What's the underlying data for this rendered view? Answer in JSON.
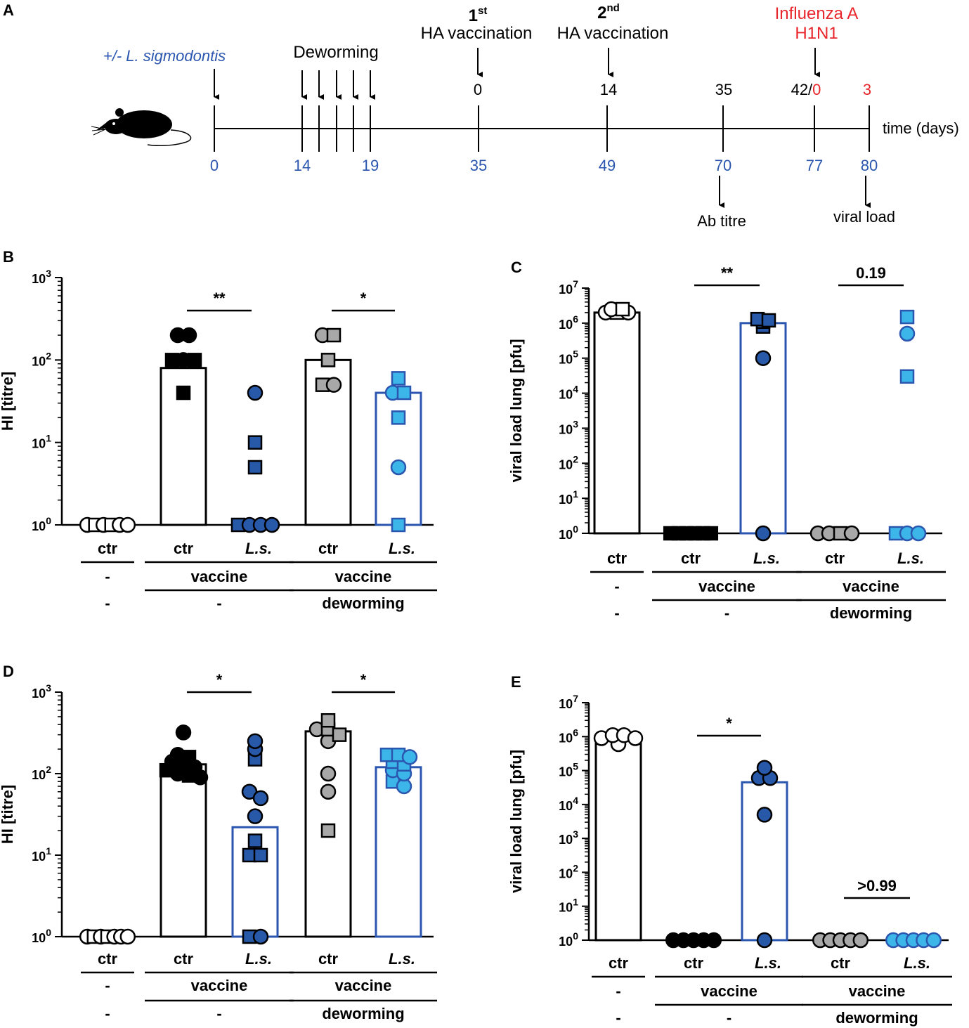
{
  "colors": {
    "blue": "#2b56b0",
    "dark_blue": "#2859a8",
    "light_blue": "#3cb6e8",
    "grey": "#a8a8a8",
    "red": "#e8262c",
    "black": "#000000"
  },
  "timeline": {
    "panel": "A",
    "infection_label": "+/- L. sigmodontis",
    "deworming_label": "Deworming",
    "vacc1_ord": "1",
    "vacc1_sup": "st",
    "vacc1_label": "HA vaccination",
    "vacc2_ord": "2",
    "vacc2_sup": "nd",
    "vacc2_label": "HA vaccination",
    "infection2_line1": "Influenza A",
    "infection2_line2": "H1N1",
    "axis_label": "time (days)",
    "days": [
      0,
      14,
      19,
      35,
      49,
      70,
      77,
      80
    ],
    "top_0": "0",
    "top_14": "14",
    "top_35": "35",
    "top_42": "42/",
    "top_42b": "0",
    "top_3": "3",
    "ab_titre": "Ab titre",
    "viral_load": "viral load",
    "mouse_icon": "mouse-icon"
  },
  "chart_data": [
    {
      "panel": "B",
      "type": "bar",
      "yscale": "log",
      "ylim": [
        1,
        1000
      ],
      "ylabel": "HI [titre]",
      "yticks": [
        {
          "b": "10",
          "e": "3"
        },
        {
          "b": "10",
          "e": "2"
        },
        {
          "b": "10",
          "e": "1"
        },
        {
          "b": "10",
          "e": "0"
        }
      ],
      "groups": [
        {
          "label": "ctr",
          "bar": 1,
          "style": "white",
          "points": [
            [
              1,
              "o"
            ],
            [
              1,
              "s"
            ],
            [
              1,
              "o"
            ],
            [
              1,
              "s"
            ],
            [
              1,
              "o"
            ],
            [
              1,
              "o"
            ]
          ]
        },
        {
          "label": "ctr",
          "bar": 80,
          "style": "black",
          "points": [
            [
              200,
              "o"
            ],
            [
              200,
              "o"
            ],
            [
              100,
              "s"
            ],
            [
              100,
              "o"
            ],
            [
              100,
              "s"
            ],
            [
              40,
              "s"
            ]
          ]
        },
        {
          "label": "L.s.",
          "bar": 1,
          "style": "dark_blue",
          "points": [
            [
              40,
              "o"
            ],
            [
              10,
              "s"
            ],
            [
              5,
              "s"
            ],
            [
              1,
              "s"
            ],
            [
              1,
              "o"
            ],
            [
              1,
              "o"
            ],
            [
              1,
              "o"
            ]
          ]
        },
        {
          "label": "ctr",
          "bar": 100,
          "style": "grey",
          "points": [
            [
              200,
              "o"
            ],
            [
              200,
              "s"
            ],
            [
              100,
              "s"
            ],
            [
              50,
              "s"
            ],
            [
              50,
              "o"
            ]
          ]
        },
        {
          "label": "L.s.",
          "bar": 40,
          "style": "light_blue",
          "points": [
            [
              60,
              "s"
            ],
            [
              40,
              "o"
            ],
            [
              40,
              "s"
            ],
            [
              20,
              "s"
            ],
            [
              5,
              "o"
            ],
            [
              1,
              "s"
            ]
          ]
        }
      ],
      "comparisons": [
        {
          "groups": [
            1,
            2
          ],
          "label": "**"
        },
        {
          "groups": [
            3,
            4
          ],
          "label": "*"
        }
      ],
      "row1": [
        "-",
        "vaccine",
        "vaccine"
      ],
      "row2": [
        "-",
        "-",
        "deworming"
      ]
    },
    {
      "panel": "C",
      "type": "bar",
      "yscale": "log",
      "ylim": [
        1,
        10000000
      ],
      "ylabel": "viral load lung [pfu]",
      "yticks": [
        {
          "b": "10",
          "e": "7"
        },
        {
          "b": "10",
          "e": "6"
        },
        {
          "b": "10",
          "e": "5"
        },
        {
          "b": "10",
          "e": "4"
        },
        {
          "b": "10",
          "e": "3"
        },
        {
          "b": "10",
          "e": "2"
        },
        {
          "b": "10",
          "e": "1"
        },
        {
          "b": "10",
          "e": "0"
        }
      ],
      "groups": [
        {
          "label": "ctr",
          "bar": 2000000,
          "style": "white",
          "points": [
            [
              2000000,
              "o"
            ],
            [
              2500000,
              "o"
            ],
            [
              2500000,
              "s"
            ],
            [
              2000000,
              "s"
            ],
            [
              2000000,
              "o"
            ]
          ]
        },
        {
          "label": "ctr",
          "bar": 1,
          "style": "black",
          "points": [
            [
              1,
              "s"
            ],
            [
              1,
              "s"
            ],
            [
              1,
              "s"
            ],
            [
              1,
              "s"
            ],
            [
              1,
              "s"
            ],
            [
              1,
              "s"
            ]
          ]
        },
        {
          "label": "L.s.",
          "bar": 1000000,
          "style": "dark_blue",
          "points": [
            [
              1300000,
              "s"
            ],
            [
              1100000,
              "s"
            ],
            [
              800000,
              "s"
            ],
            [
              1200000,
              "s"
            ],
            [
              100000,
              "o"
            ],
            [
              1,
              "o"
            ]
          ]
        },
        {
          "label": "ctr",
          "bar": 1,
          "style": "grey",
          "points": [
            [
              1,
              "o"
            ],
            [
              1,
              "o"
            ],
            [
              1,
              "s"
            ],
            [
              1,
              "o"
            ]
          ]
        },
        {
          "label": "L.s.",
          "bar": 1,
          "style": "light_blue",
          "points": [
            [
              1500000,
              "s"
            ],
            [
              500000,
              "o"
            ],
            [
              30000,
              "s"
            ],
            [
              1,
              "s"
            ],
            [
              1,
              "o"
            ],
            [
              1,
              "o"
            ]
          ]
        }
      ],
      "comparisons": [
        {
          "groups": [
            1,
            2
          ],
          "label": "**"
        },
        {
          "groups": [
            3,
            4
          ],
          "label": "0.19"
        }
      ],
      "row1": [
        "-",
        "vaccine",
        "vaccine"
      ],
      "row2": [
        "-",
        "-",
        "deworming"
      ]
    },
    {
      "panel": "D",
      "type": "bar",
      "yscale": "log",
      "ylim": [
        1,
        1000
      ],
      "ylabel": "HI [titre]",
      "yticks": [
        {
          "b": "10",
          "e": "3"
        },
        {
          "b": "10",
          "e": "2"
        },
        {
          "b": "10",
          "e": "1"
        },
        {
          "b": "10",
          "e": "0"
        }
      ],
      "groups": [
        {
          "label": "ctr",
          "bar": 1,
          "style": "white",
          "points": [
            [
              1,
              "o"
            ],
            [
              1,
              "s"
            ],
            [
              1,
              "o"
            ],
            [
              1,
              "s"
            ],
            [
              1,
              "o"
            ],
            [
              1,
              "o"
            ],
            [
              1,
              "o"
            ]
          ]
        },
        {
          "label": "ctr",
          "bar": 130,
          "style": "black",
          "points": [
            [
              320,
              "o"
            ],
            [
              170,
              "o"
            ],
            [
              160,
              "s"
            ],
            [
              140,
              "o"
            ],
            [
              130,
              "s"
            ],
            [
              120,
              "o"
            ],
            [
              110,
              "s"
            ],
            [
              100,
              "o"
            ],
            [
              95,
              "s"
            ],
            [
              90,
              "o"
            ]
          ]
        },
        {
          "label": "L.s.",
          "bar": 22,
          "style": "dark_blue",
          "points": [
            [
              250,
              "o"
            ],
            [
              200,
              "o"
            ],
            [
              150,
              "s"
            ],
            [
              60,
              "o"
            ],
            [
              50,
              "o"
            ],
            [
              30,
              "o"
            ],
            [
              15,
              "s"
            ],
            [
              10,
              "s"
            ],
            [
              10,
              "s"
            ],
            [
              1,
              "s"
            ],
            [
              1,
              "o"
            ]
          ]
        },
        {
          "label": "ctr",
          "bar": 330,
          "style": "grey",
          "points": [
            [
              450,
              "s"
            ],
            [
              350,
              "o"
            ],
            [
              350,
              "s"
            ],
            [
              300,
              "s"
            ],
            [
              250,
              "o"
            ],
            [
              100,
              "o"
            ],
            [
              60,
              "o"
            ],
            [
              20,
              "s"
            ]
          ]
        },
        {
          "label": "L.s.",
          "bar": 120,
          "style": "light_blue",
          "points": [
            [
              170,
              "s"
            ],
            [
              170,
              "s"
            ],
            [
              160,
              "o"
            ],
            [
              140,
              "s"
            ],
            [
              130,
              "s"
            ],
            [
              110,
              "o"
            ],
            [
              100,
              "o"
            ],
            [
              80,
              "s"
            ],
            [
              70,
              "o"
            ]
          ]
        }
      ],
      "comparisons": [
        {
          "groups": [
            1,
            2
          ],
          "label": "*"
        },
        {
          "groups": [
            3,
            4
          ],
          "label": "*"
        }
      ],
      "row1": [
        "-",
        "vaccine",
        "vaccine"
      ],
      "row2": [
        "-",
        "-",
        "deworming"
      ]
    },
    {
      "panel": "E",
      "type": "bar",
      "yscale": "log",
      "ylim": [
        1,
        10000000
      ],
      "ylabel": "viral load lung [pfu]",
      "yticks": [
        {
          "b": "10",
          "e": "7"
        },
        {
          "b": "10",
          "e": "6"
        },
        {
          "b": "10",
          "e": "5"
        },
        {
          "b": "10",
          "e": "4"
        },
        {
          "b": "10",
          "e": "3"
        },
        {
          "b": "10",
          "e": "2"
        },
        {
          "b": "10",
          "e": "1"
        },
        {
          "b": "10",
          "e": "0"
        }
      ],
      "groups": [
        {
          "label": "ctr",
          "bar": 800000,
          "style": "white",
          "points": [
            [
              900000,
              "o"
            ],
            [
              1100000,
              "o"
            ],
            [
              1100000,
              "o"
            ],
            [
              900000,
              "o"
            ],
            [
              600000,
              "o"
            ]
          ]
        },
        {
          "label": "ctr",
          "bar": 1,
          "style": "black",
          "points": [
            [
              1,
              "o"
            ],
            [
              1,
              "o"
            ],
            [
              1,
              "o"
            ],
            [
              1,
              "o"
            ],
            [
              1,
              "o"
            ]
          ]
        },
        {
          "label": "L.s.",
          "bar": 45000,
          "style": "dark_blue",
          "points": [
            [
              120000,
              "o"
            ],
            [
              60000,
              "o"
            ],
            [
              60000,
              "o"
            ],
            [
              5000,
              "o"
            ],
            [
              1,
              "o"
            ]
          ]
        },
        {
          "label": "ctr",
          "bar": 1,
          "style": "grey",
          "points": [
            [
              1,
              "o"
            ],
            [
              1,
              "o"
            ],
            [
              1,
              "o"
            ],
            [
              1,
              "o"
            ],
            [
              1,
              "o"
            ]
          ]
        },
        {
          "label": "L.s.",
          "bar": 1,
          "style": "light_blue",
          "points": [
            [
              1,
              "o"
            ],
            [
              1,
              "o"
            ],
            [
              1,
              "o"
            ],
            [
              1,
              "o"
            ],
            [
              1,
              "o"
            ]
          ]
        }
      ],
      "comparisons": [
        {
          "groups": [
            1,
            2
          ],
          "label": "*"
        },
        {
          "groups": [
            3,
            4
          ],
          "label": ">0.99"
        }
      ],
      "row1": [
        "-",
        "vaccine",
        "vaccine"
      ],
      "row2": [
        "-",
        "-",
        "deworming"
      ]
    }
  ]
}
